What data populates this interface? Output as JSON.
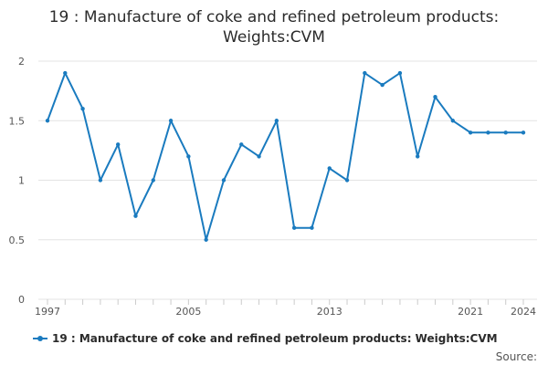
{
  "colors": {
    "series": "#1a7bbf",
    "grid": "#e3e3e3",
    "axis_text": "#555555",
    "title_text": "#2b2b2b"
  },
  "source_label": "Source:",
  "chart_data": {
    "type": "line",
    "title_line1": "19 : Manufacture of coke and refined petroleum products:",
    "title_line2": "Weights:CVM",
    "xlabel": "",
    "ylabel": "",
    "x": [
      1997,
      1998,
      1999,
      2000,
      2001,
      2002,
      2003,
      2004,
      2005,
      2006,
      2007,
      2008,
      2009,
      2010,
      2011,
      2012,
      2013,
      2014,
      2015,
      2016,
      2017,
      2018,
      2019,
      2020,
      2021,
      2022,
      2023,
      2024
    ],
    "series": [
      {
        "name": "19 : Manufacture of coke and refined petroleum products: Weights:CVM",
        "values": [
          1.5,
          1.9,
          1.6,
          1.0,
          1.3,
          0.7,
          1.0,
          1.5,
          1.2,
          0.5,
          1.0,
          1.3,
          1.2,
          1.5,
          0.6,
          0.6,
          1.1,
          1.0,
          1.9,
          1.8,
          1.9,
          1.2,
          1.7,
          1.5,
          1.4,
          1.4,
          1.4,
          1.4
        ]
      }
    ],
    "xlim": [
      1997,
      2024
    ],
    "ylim": [
      0,
      2
    ],
    "x_ticks": [
      1997,
      2005,
      2013,
      2021,
      2024
    ],
    "x_tick_labels": [
      "1997",
      "2005",
      "2013",
      "2021",
      "2024"
    ],
    "y_ticks": [
      0,
      0.5,
      1,
      1.5,
      2
    ],
    "y_tick_labels": [
      "0",
      "0.5",
      "1",
      "1.5",
      "2"
    ],
    "grid": true,
    "legend_position": "bottom-left"
  }
}
